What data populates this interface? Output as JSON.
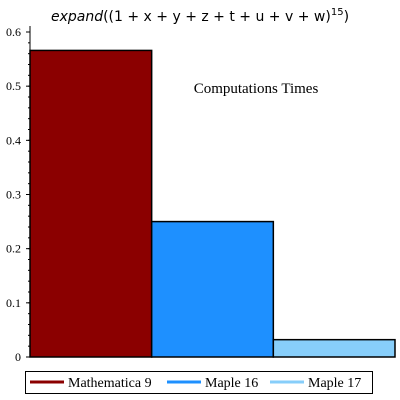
{
  "chart_data": {
    "type": "bar",
    "title_parts": [
      "expand",
      "((1 + x + y + z + t + u + v + w)",
      "15",
      ")"
    ],
    "annotation": "Computations Times",
    "xlabel": "",
    "ylabel": "",
    "ylim": [
      0,
      0.6
    ],
    "yticks": [
      0,
      0.1,
      0.2,
      0.3,
      0.4,
      0.5,
      0.6
    ],
    "ytick_labels": [
      "0",
      "0.1",
      "0.2",
      "0.3",
      "0.4",
      "0.5",
      "0.6"
    ],
    "grid": false,
    "legend_position": "bottom",
    "series": [
      {
        "name": "Mathematica 9",
        "value": 0.566,
        "color": "#8b0000"
      },
      {
        "name": "Maple 16",
        "value": 0.25,
        "color": "#1e90ff"
      },
      {
        "name": "Maple 17",
        "value": 0.032,
        "color": "#87cefa"
      }
    ]
  }
}
